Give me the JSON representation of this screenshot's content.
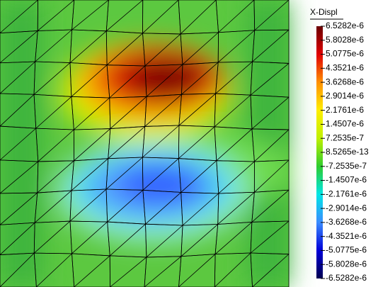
{
  "chart_data": {
    "type": "field",
    "title": "X-Displ",
    "ylim": [
      -6.5282e-06,
      6.5282e-06
    ],
    "colors": [
      "#00004f",
      "#0000d8",
      "#3a8cff",
      "#00e6e6",
      "#2ecc2e",
      "#bff000",
      "#ffee00",
      "#ff9000",
      "#e00000",
      "#6b0000"
    ],
    "yticks": [
      {
        "value": 6.5282e-06,
        "label": "6.5282e-6"
      },
      {
        "value": 5.8028e-06,
        "label": "5.8028e-6"
      },
      {
        "value": 5.0775e-06,
        "label": "5.0775e-6"
      },
      {
        "value": 4.3521e-06,
        "label": "4.3521e-6"
      },
      {
        "value": 3.6268e-06,
        "label": "3.6268e-6"
      },
      {
        "value": 2.9014e-06,
        "label": "2.9014e-6"
      },
      {
        "value": 2.1761e-06,
        "label": "2.1761e-6"
      },
      {
        "value": 1.4507e-06,
        "label": "1.4507e-6"
      },
      {
        "value": 7.2535e-07,
        "label": "7.2535e-7"
      },
      {
        "value": 8.5265e-13,
        "label": "8.5265e-13"
      },
      {
        "value": -7.2535e-07,
        "label": "-7.2535e-7"
      },
      {
        "value": -1.4507e-06,
        "label": "-1.4507e-6"
      },
      {
        "value": -2.1761e-06,
        "label": "-2.1761e-6"
      },
      {
        "value": -2.9014e-06,
        "label": "-2.9014e-6"
      },
      {
        "value": -3.6268e-06,
        "label": "-3.6268e-6"
      },
      {
        "value": -4.3521e-06,
        "label": "-4.3521e-6"
      },
      {
        "value": -5.0775e-06,
        "label": "-5.0775e-6"
      },
      {
        "value": -5.8028e-06,
        "label": "-5.8028e-6"
      },
      {
        "value": -6.5282e-06,
        "label": "-6.5282e-6"
      }
    ]
  }
}
